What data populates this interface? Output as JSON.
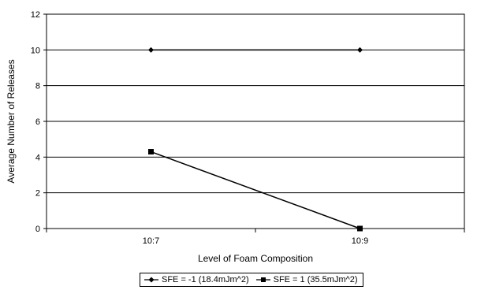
{
  "chart_data": {
    "type": "line",
    "title": "",
    "xlabel": "Level of Foam Composition",
    "ylabel": "Average Number of Releases",
    "categories": [
      "10:7",
      "10:9"
    ],
    "ylim": [
      0,
      12
    ],
    "yticks": [
      0,
      2,
      4,
      6,
      8,
      10,
      12
    ],
    "grid": true,
    "legend_position": "bottom",
    "series": [
      {
        "name": "SFE = -1 (18.4mJm^2)",
        "values": [
          10,
          10
        ],
        "marker": "diamond",
        "color": "#000000"
      },
      {
        "name": "SFE = 1 (35.5mJm^2)",
        "values": [
          4.3,
          0
        ],
        "marker": "square",
        "color": "#000000"
      }
    ]
  }
}
